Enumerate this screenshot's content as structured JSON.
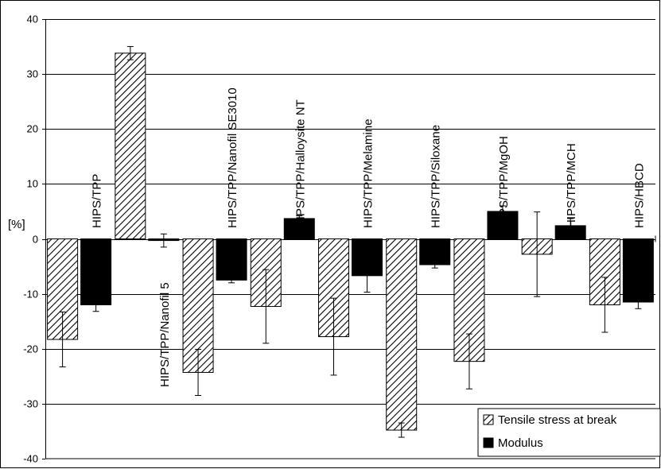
{
  "chart_data": {
    "type": "bar",
    "ylabel": "[%]",
    "ylim": [
      -40,
      40
    ],
    "yticks": [
      "40",
      "30",
      "20",
      "10",
      "0",
      "-10",
      "-20",
      "-30",
      "-40"
    ],
    "grid": true,
    "legend_position": "bottom-right",
    "categories": [
      "HIPS/TPP",
      "HIPS/TPP/Nanofil 5",
      "HIPS/TPP/Nanofil SE3010",
      "HIPS/TPP/Halloysite NT",
      "HIPS/TPP/Melamine",
      "HIPS/TPP/Siloxane",
      "HIPS/TPP/MgOH",
      "HIPS/TPP/MCH",
      "HIPS/HBCD"
    ],
    "series": [
      {
        "name": "Tensile stress at break",
        "pattern": "diagonal-hatch",
        "values": [
          -18.3,
          33.8,
          -24.3,
          -12.3,
          -17.8,
          -34.8,
          -22.3,
          -2.8,
          -12
        ],
        "errors": [
          5,
          1.2,
          4.2,
          6.7,
          7,
          1.3,
          5,
          7.7,
          5
        ]
      },
      {
        "name": "Modulus",
        "color": "#000000",
        "values": [
          -12,
          -0.3,
          -7.5,
          3.7,
          -6.7,
          -4.7,
          5,
          2.4,
          -11.5
        ],
        "errors": [
          1.2,
          1.2,
          0.5,
          0.5,
          3,
          0.6,
          1,
          1.3,
          1.2
        ]
      }
    ]
  }
}
